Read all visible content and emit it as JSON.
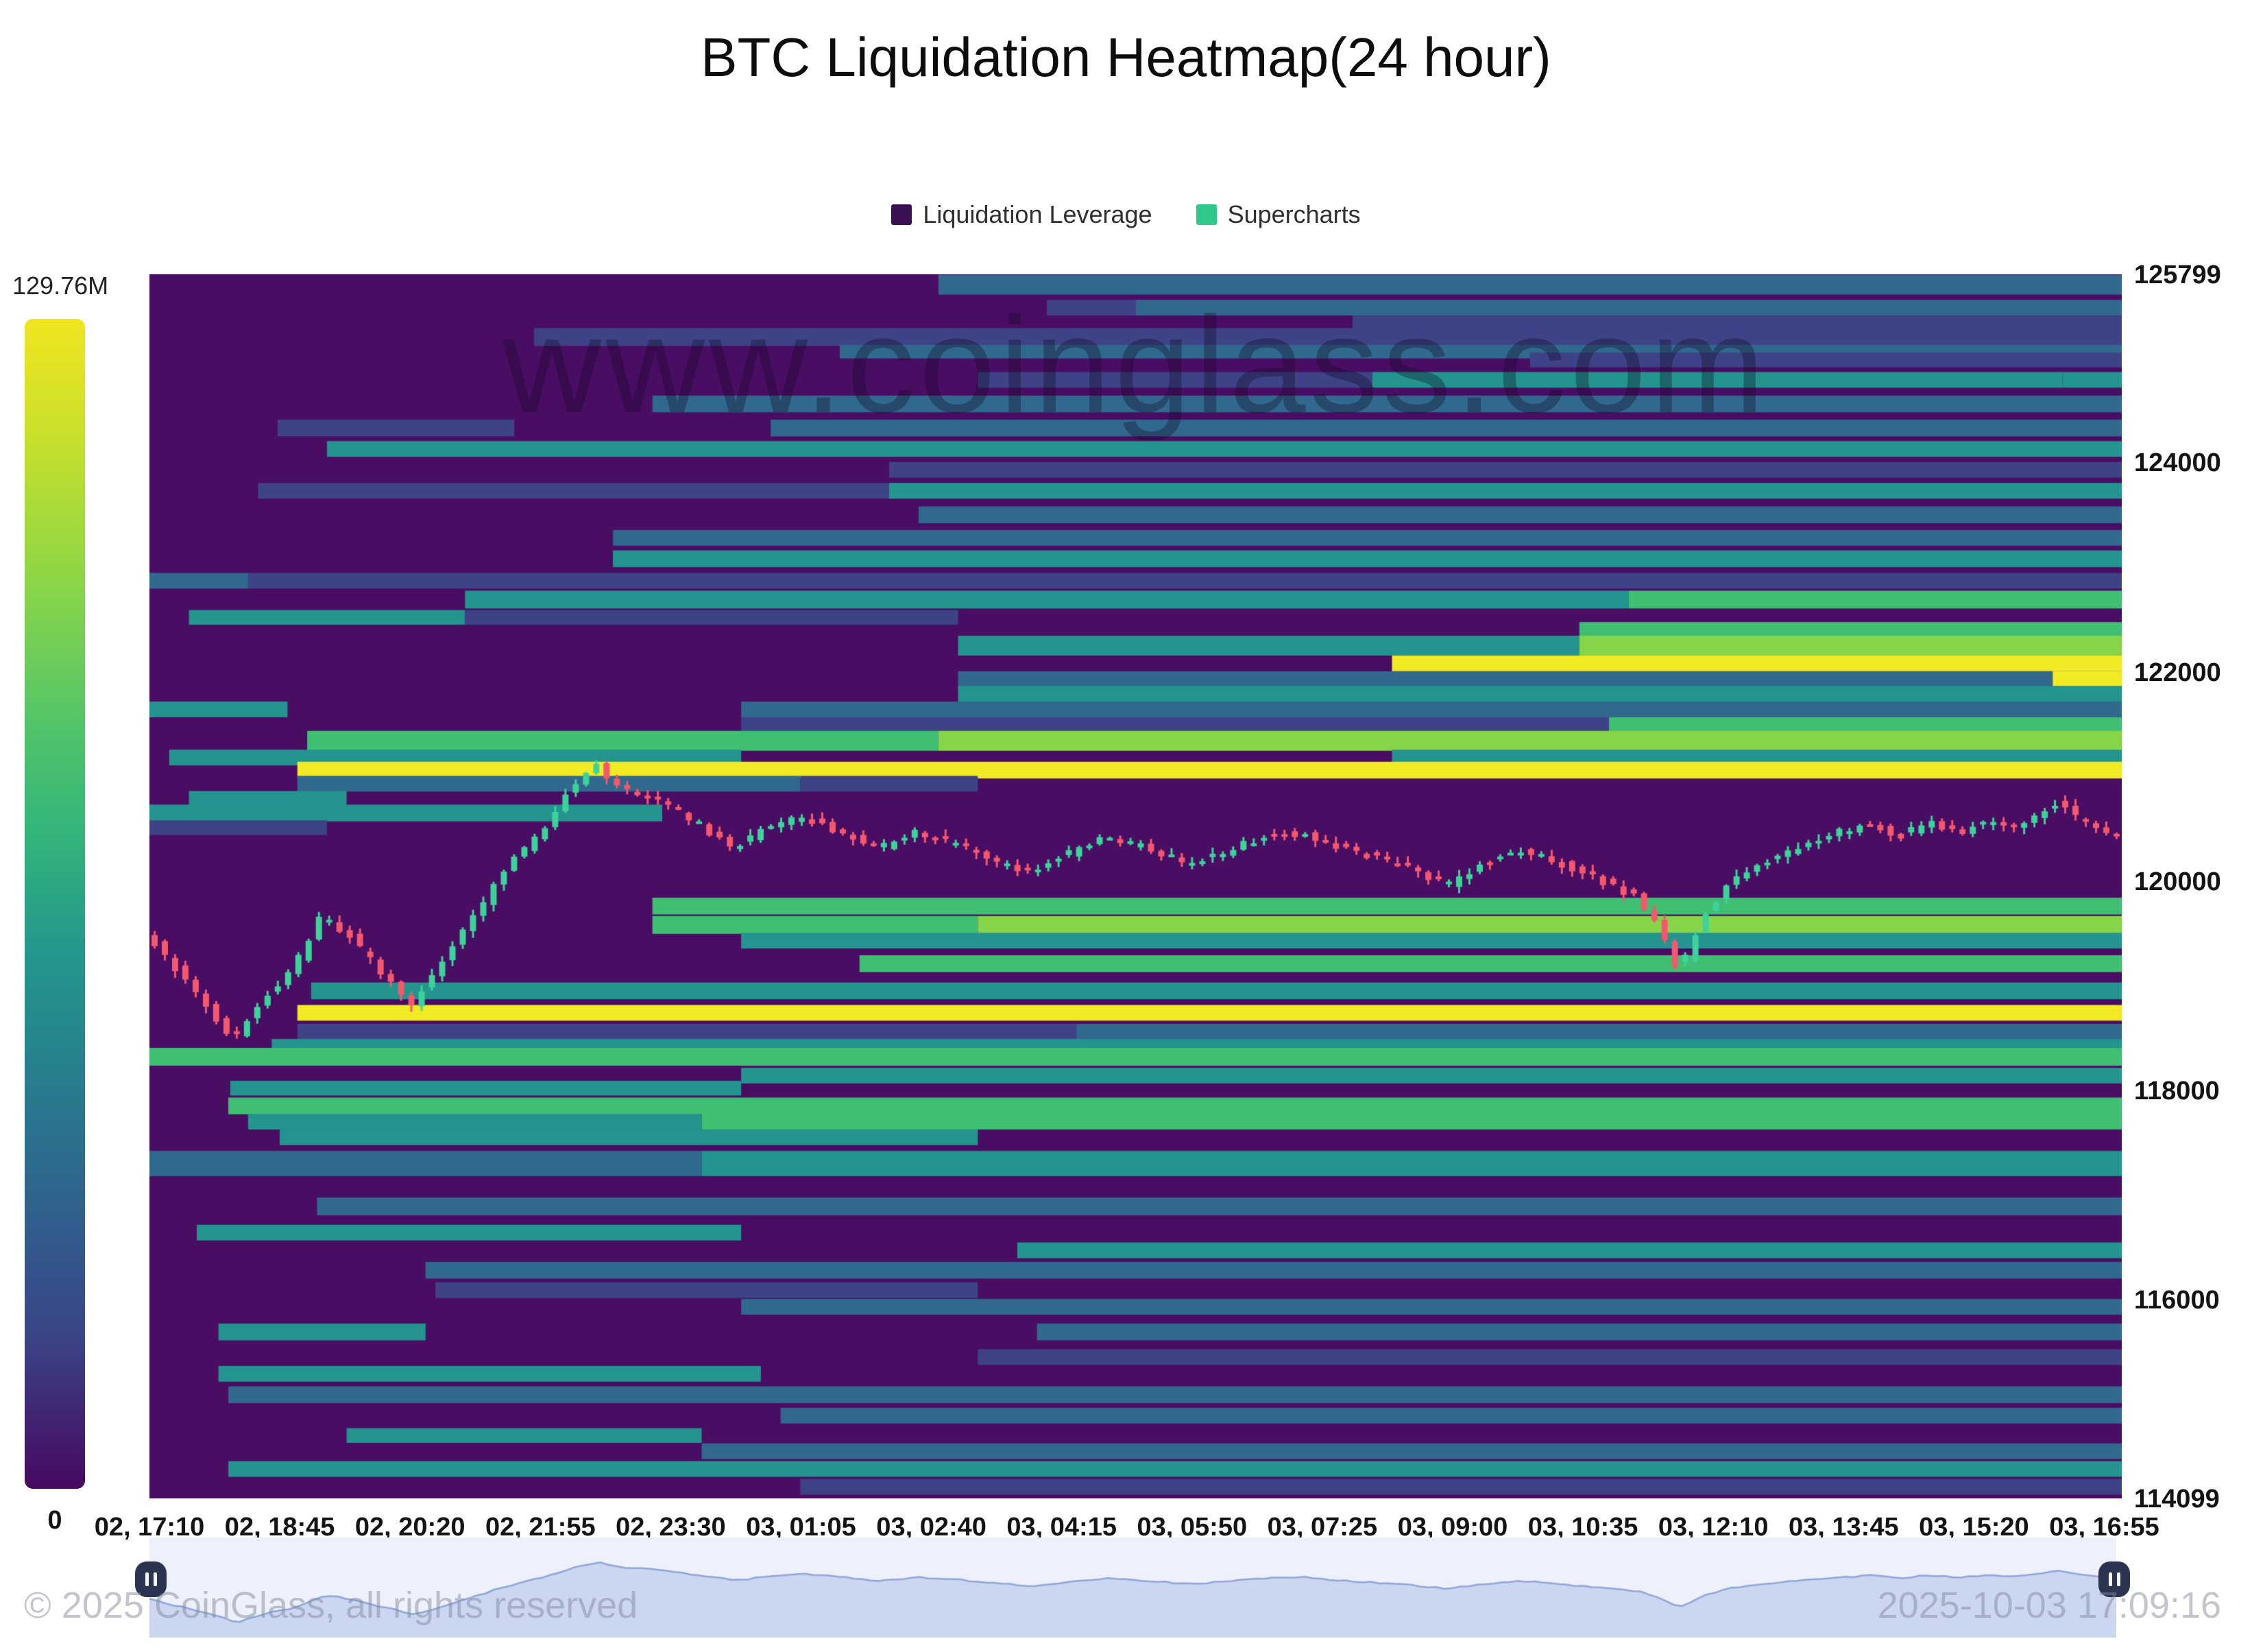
{
  "title": "BTC Liquidation Heatmap(24 hour)",
  "legend": {
    "items": [
      {
        "label": "Liquidation Leverage",
        "color": "#3a1053"
      },
      {
        "label": "Supercharts",
        "color": "#2dc98a"
      }
    ]
  },
  "colorbar": {
    "max_label": "129.76M",
    "min_label": "0"
  },
  "watermarks": {
    "center": "www.coinglass.com",
    "copyright": "© 2025 CoinGlass, all rights reserved",
    "timestamp": "2025-10-03 17:09:16"
  },
  "chart_data": {
    "type": "heatmap",
    "title": "BTC Liquidation Heatmap(24 hour)",
    "legend_entries": [
      "Liquidation Leverage",
      "Supercharts"
    ],
    "colorbar": {
      "max": "129.76M",
      "min": "0"
    },
    "x_ticks": [
      "02, 17:10",
      "02, 18:45",
      "02, 20:20",
      "02, 21:55",
      "02, 23:30",
      "03, 01:05",
      "03, 02:40",
      "03, 04:15",
      "03, 05:50",
      "03, 07:25",
      "03, 09:00",
      "03, 10:35",
      "03, 12:10",
      "03, 13:45",
      "03, 15:20",
      "03, 16:55"
    ],
    "y_ticks": [
      125799,
      124000,
      122000,
      120000,
      118000,
      116000,
      114099
    ],
    "price_range": [
      114099,
      125799
    ],
    "grid": false,
    "legend_position": "top",
    "palette": {
      "bg": "#4a0d64",
      "navy": "#3d4386",
      "blue": "#31688e",
      "teal": "#23948e",
      "green": "#3fbf71",
      "lime": "#86d549",
      "yellow": "#f2ea25"
    },
    "bands": [
      {
        "p": 125700,
        "t": 190,
        "segs": [
          [
            0.4,
            1,
            "blue"
          ]
        ]
      },
      {
        "p": 125480,
        "t": 150,
        "segs": [
          [
            0.455,
            0.5,
            "navy"
          ],
          [
            0.5,
            1,
            "blue"
          ]
        ]
      },
      {
        "p": 125340,
        "t": 130,
        "segs": [
          [
            0.61,
            1,
            "navy"
          ]
        ]
      },
      {
        "p": 125200,
        "t": 170,
        "segs": [
          [
            0.195,
            1,
            "navy"
          ]
        ]
      },
      {
        "p": 125060,
        "t": 130,
        "segs": [
          [
            0.35,
            1,
            "blue"
          ]
        ]
      },
      {
        "p": 124980,
        "t": 140,
        "segs": [
          [
            0.7,
            1,
            "navy"
          ]
        ]
      },
      {
        "p": 124790,
        "t": 150,
        "segs": [
          [
            0.42,
            0.62,
            "navy"
          ],
          [
            0.62,
            0.97,
            "teal"
          ],
          [
            0.97,
            1,
            "teal"
          ]
        ]
      },
      {
        "p": 124560,
        "t": 160,
        "segs": [
          [
            0.255,
            1,
            "blue"
          ]
        ]
      },
      {
        "p": 124330,
        "t": 160,
        "segs": [
          [
            0.065,
            0.185,
            "navy"
          ],
          [
            0.315,
            1,
            "blue"
          ]
        ]
      },
      {
        "p": 124130,
        "t": 150,
        "segs": [
          [
            0.09,
            1,
            "teal"
          ]
        ]
      },
      {
        "p": 123930,
        "t": 150,
        "segs": [
          [
            0.375,
            1,
            "navy"
          ]
        ]
      },
      {
        "p": 123730,
        "t": 150,
        "segs": [
          [
            0.055,
            0.375,
            "navy"
          ],
          [
            0.375,
            1,
            "teal"
          ]
        ]
      },
      {
        "p": 123500,
        "t": 160,
        "segs": [
          [
            0.39,
            1,
            "blue"
          ]
        ]
      },
      {
        "p": 123280,
        "t": 150,
        "segs": [
          [
            0.235,
            1,
            "blue"
          ]
        ]
      },
      {
        "p": 123080,
        "t": 160,
        "segs": [
          [
            0.235,
            1,
            "teal"
          ]
        ]
      },
      {
        "p": 122870,
        "t": 150,
        "segs": [
          [
            0,
            0.05,
            "blue"
          ],
          [
            0.05,
            1,
            "navy"
          ]
        ]
      },
      {
        "p": 122690,
        "t": 170,
        "segs": [
          [
            0.16,
            0.75,
            "teal"
          ],
          [
            0.75,
            1,
            "green"
          ]
        ]
      },
      {
        "p": 122520,
        "t": 140,
        "segs": [
          [
            0.02,
            0.16,
            "teal"
          ],
          [
            0.16,
            0.41,
            "navy"
          ]
        ]
      },
      {
        "p": 122400,
        "t": 150,
        "segs": [
          [
            0.725,
            1,
            "green"
          ]
        ]
      },
      {
        "p": 122250,
        "t": 190,
        "segs": [
          [
            0.41,
            0.725,
            "teal"
          ],
          [
            0.725,
            1,
            "lime"
          ]
        ]
      },
      {
        "p": 122080,
        "t": 150,
        "segs": [
          [
            0.63,
            1,
            "yellow"
          ]
        ]
      },
      {
        "p": 121930,
        "t": 150,
        "segs": [
          [
            0.41,
            0.965,
            "blue"
          ],
          [
            0.965,
            1,
            "yellow"
          ]
        ]
      },
      {
        "p": 121790,
        "t": 150,
        "segs": [
          [
            0.41,
            1,
            "teal"
          ]
        ]
      },
      {
        "p": 121640,
        "t": 150,
        "segs": [
          [
            0,
            0.07,
            "teal"
          ],
          [
            0.3,
            1,
            "blue"
          ]
        ]
      },
      {
        "p": 121490,
        "t": 150,
        "segs": [
          [
            0.3,
            0.74,
            "navy"
          ],
          [
            0.74,
            1,
            "green"
          ]
        ]
      },
      {
        "p": 121340,
        "t": 190,
        "segs": [
          [
            0.08,
            0.4,
            "green"
          ],
          [
            0.4,
            1,
            "lime"
          ]
        ]
      },
      {
        "p": 121180,
        "t": 150,
        "segs": [
          [
            0.01,
            0.3,
            "teal"
          ],
          [
            0.63,
            1,
            "teal"
          ]
        ]
      },
      {
        "p": 121060,
        "t": 160,
        "segs": [
          [
            0.075,
            1,
            "yellow"
          ]
        ]
      },
      {
        "p": 120930,
        "t": 150,
        "segs": [
          [
            0.075,
            0.33,
            "blue"
          ],
          [
            0.33,
            0.42,
            "navy"
          ]
        ]
      },
      {
        "p": 120790,
        "t": 140,
        "segs": [
          [
            0.02,
            0.1,
            "teal"
          ]
        ]
      },
      {
        "p": 120650,
        "t": 160,
        "segs": [
          [
            0,
            0.26,
            "teal"
          ]
        ]
      },
      {
        "p": 120510,
        "t": 140,
        "segs": [
          [
            0,
            0.09,
            "navy"
          ]
        ]
      },
      {
        "p": 119760,
        "t": 160,
        "segs": [
          [
            0.255,
            1,
            "green"
          ]
        ]
      },
      {
        "p": 119580,
        "t": 170,
        "segs": [
          [
            0.255,
            0.42,
            "green"
          ],
          [
            0.42,
            1,
            "lime"
          ]
        ]
      },
      {
        "p": 119430,
        "t": 150,
        "segs": [
          [
            0.3,
            1,
            "teal"
          ]
        ]
      },
      {
        "p": 119210,
        "t": 160,
        "segs": [
          [
            0.36,
            1,
            "green"
          ]
        ]
      },
      {
        "p": 118950,
        "t": 160,
        "segs": [
          [
            0.082,
            1,
            "teal"
          ]
        ]
      },
      {
        "p": 118740,
        "t": 150,
        "segs": [
          [
            0.075,
            1,
            "yellow"
          ]
        ]
      },
      {
        "p": 118560,
        "t": 150,
        "segs": [
          [
            0.075,
            0.47,
            "navy"
          ],
          [
            0.47,
            1,
            "blue"
          ]
        ]
      },
      {
        "p": 118420,
        "t": 140,
        "segs": [
          [
            0.062,
            1,
            "teal"
          ]
        ]
      },
      {
        "p": 118320,
        "t": 170,
        "segs": [
          [
            0,
            1,
            "green"
          ]
        ]
      },
      {
        "p": 118140,
        "t": 150,
        "segs": [
          [
            0.3,
            1,
            "teal"
          ]
        ]
      },
      {
        "p": 118020,
        "t": 140,
        "segs": [
          [
            0.041,
            0.3,
            "teal"
          ]
        ]
      },
      {
        "p": 117850,
        "t": 160,
        "segs": [
          [
            0.04,
            1,
            "green"
          ]
        ]
      },
      {
        "p": 117700,
        "t": 150,
        "segs": [
          [
            0.05,
            0.28,
            "teal"
          ],
          [
            0.28,
            1,
            "green"
          ]
        ]
      },
      {
        "p": 117550,
        "t": 150,
        "segs": [
          [
            0.066,
            0.42,
            "teal"
          ]
        ]
      },
      {
        "p": 117300,
        "t": 240,
        "segs": [
          [
            0,
            0.28,
            "blue"
          ],
          [
            0.28,
            1,
            "teal"
          ]
        ]
      },
      {
        "p": 116890,
        "t": 170,
        "segs": [
          [
            0.085,
            1,
            "blue"
          ]
        ]
      },
      {
        "p": 116640,
        "t": 150,
        "segs": [
          [
            0.024,
            0.3,
            "teal"
          ]
        ]
      },
      {
        "p": 116470,
        "t": 150,
        "segs": [
          [
            0.44,
            1,
            "teal"
          ]
        ]
      },
      {
        "p": 116280,
        "t": 160,
        "segs": [
          [
            0.14,
            1,
            "blue"
          ]
        ]
      },
      {
        "p": 116090,
        "t": 150,
        "segs": [
          [
            0.145,
            0.42,
            "navy"
          ]
        ]
      },
      {
        "p": 115930,
        "t": 150,
        "segs": [
          [
            0.3,
            1,
            "blue"
          ]
        ]
      },
      {
        "p": 115690,
        "t": 160,
        "segs": [
          [
            0.035,
            0.14,
            "teal"
          ],
          [
            0.45,
            1,
            "blue"
          ]
        ]
      },
      {
        "p": 115450,
        "t": 150,
        "segs": [
          [
            0.42,
            1,
            "navy"
          ]
        ]
      },
      {
        "p": 115290,
        "t": 150,
        "segs": [
          [
            0.035,
            0.31,
            "teal"
          ]
        ]
      },
      {
        "p": 115090,
        "t": 160,
        "segs": [
          [
            0.04,
            1,
            "blue"
          ]
        ]
      },
      {
        "p": 114890,
        "t": 150,
        "segs": [
          [
            0.32,
            1,
            "blue"
          ]
        ]
      },
      {
        "p": 114700,
        "t": 140,
        "segs": [
          [
            0.1,
            0.28,
            "teal"
          ]
        ]
      },
      {
        "p": 114550,
        "t": 150,
        "segs": [
          [
            0.28,
            1,
            "blue"
          ]
        ]
      },
      {
        "p": 114380,
        "t": 150,
        "segs": [
          [
            0.04,
            1,
            "teal"
          ]
        ]
      },
      {
        "p": 114210,
        "t": 150,
        "segs": [
          [
            0.33,
            1,
            "navy"
          ]
        ]
      }
    ],
    "candles": {
      "count": 192,
      "up_color": "#3ed29b",
      "down_color": "#f4586c",
      "anchors": [
        [
          0,
          119500
        ],
        [
          0.012,
          119250
        ],
        [
          0.028,
          118900
        ],
        [
          0.045,
          118480
        ],
        [
          0.058,
          118850
        ],
        [
          0.075,
          119150
        ],
        [
          0.09,
          119680
        ],
        [
          0.105,
          119450
        ],
        [
          0.12,
          119120
        ],
        [
          0.135,
          118820
        ],
        [
          0.152,
          119250
        ],
        [
          0.168,
          119700
        ],
        [
          0.185,
          120150
        ],
        [
          0.2,
          120450
        ],
        [
          0.216,
          120900
        ],
        [
          0.228,
          121120
        ],
        [
          0.242,
          120880
        ],
        [
          0.26,
          120800
        ],
        [
          0.278,
          120580
        ],
        [
          0.298,
          120320
        ],
        [
          0.315,
          120500
        ],
        [
          0.333,
          120620
        ],
        [
          0.352,
          120470
        ],
        [
          0.372,
          120310
        ],
        [
          0.39,
          120470
        ],
        [
          0.41,
          120370
        ],
        [
          0.43,
          120210
        ],
        [
          0.45,
          120080
        ],
        [
          0.468,
          120260
        ],
        [
          0.488,
          120420
        ],
        [
          0.508,
          120310
        ],
        [
          0.528,
          120170
        ],
        [
          0.548,
          120280
        ],
        [
          0.568,
          120430
        ],
        [
          0.588,
          120460
        ],
        [
          0.608,
          120310
        ],
        [
          0.628,
          120210
        ],
        [
          0.645,
          120090
        ],
        [
          0.66,
          119960
        ],
        [
          0.678,
          120160
        ],
        [
          0.695,
          120310
        ],
        [
          0.712,
          120210
        ],
        [
          0.728,
          120080
        ],
        [
          0.744,
          119960
        ],
        [
          0.758,
          119820
        ],
        [
          0.77,
          119480
        ],
        [
          0.778,
          119120
        ],
        [
          0.79,
          119650
        ],
        [
          0.803,
          119980
        ],
        [
          0.82,
          120190
        ],
        [
          0.84,
          120330
        ],
        [
          0.858,
          120460
        ],
        [
          0.875,
          120540
        ],
        [
          0.89,
          120430
        ],
        [
          0.905,
          120560
        ],
        [
          0.92,
          120470
        ],
        [
          0.935,
          120580
        ],
        [
          0.95,
          120500
        ],
        [
          0.962,
          120660
        ],
        [
          0.972,
          120780
        ],
        [
          0.982,
          120560
        ],
        [
          0.992,
          120470
        ],
        [
          1,
          120420
        ]
      ]
    },
    "navigator": {
      "bg": "#eef1fb",
      "fill": "#cbd6f0",
      "line": "#8ea6d8",
      "handle_color": "#2b3450"
    }
  }
}
